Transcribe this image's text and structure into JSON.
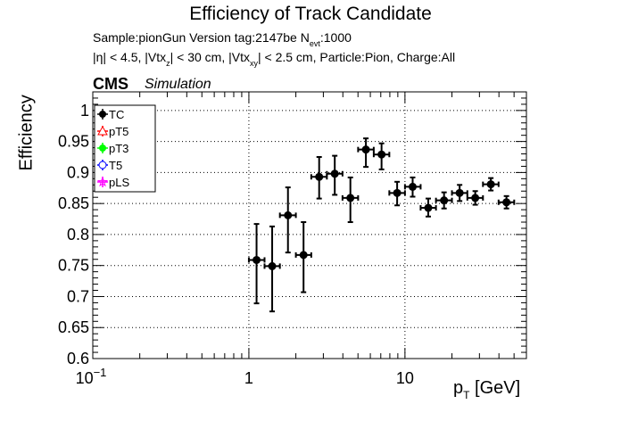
{
  "header": {
    "title": "Efficiency of Track Candidate",
    "subtitle_1_a": "Sample:pionGun   Version tag:2147be  N",
    "subtitle_1_sub": "evt",
    "subtitle_1_b": ":1000",
    "subtitle_2_a": "|η| < 4.5, |Vtx",
    "subtitle_2_sub1": "z",
    "subtitle_2_b": "| < 30 cm, |Vtx",
    "subtitle_2_sub2": "xy",
    "subtitle_2_c": "| < 2.5 cm, Particle:Pion, Charge:All",
    "cms_label": "CMS",
    "simulation_label": "Simulation"
  },
  "chart_data": {
    "type": "scatter",
    "title": "Efficiency of Track Candidate",
    "ylabel": "Efficiency",
    "xlabel_main": "p",
    "xlabel_sub": "T",
    "xlabel_unit": " [GeV]",
    "xscale": "log",
    "xlim": [
      0.1,
      60
    ],
    "ylim": [
      0.6,
      1.03
    ],
    "grid": true,
    "legend_position": "top-left",
    "x_tick_labels": [
      {
        "value": 0.1,
        "label": "10",
        "sup": "−1"
      },
      {
        "value": 1,
        "label": "1",
        "sup": ""
      },
      {
        "value": 10,
        "label": "10",
        "sup": ""
      }
    ],
    "y_ticks": [
      0.6,
      0.65,
      0.7,
      0.75,
      0.8,
      0.85,
      0.9,
      0.95,
      1
    ],
    "y_tick_labels": [
      "0.6",
      "0.65",
      "0.7",
      "0.75",
      "0.8",
      "0.85",
      "0.9",
      "0.95",
      "1"
    ],
    "legend": [
      {
        "name": "TC",
        "color": "#000000",
        "marker": "filled-circle"
      },
      {
        "name": "pT5",
        "color": "#ff0000",
        "marker": "open-triangle"
      },
      {
        "name": "pT3",
        "color": "#00ff00",
        "marker": "filled-circle"
      },
      {
        "name": "T5",
        "color": "#0000ff",
        "marker": "open-circle"
      },
      {
        "name": "pLS",
        "color": "#ff00ff",
        "marker": "star"
      }
    ],
    "series": [
      {
        "name": "TC",
        "color": "#000000",
        "points": [
          {
            "x": 1.12,
            "xlo": 1.0,
            "xhi": 1.26,
            "y": 0.759,
            "ylo": 0.689,
            "yhi": 0.817
          },
          {
            "x": 1.41,
            "xlo": 1.26,
            "xhi": 1.58,
            "y": 0.749,
            "ylo": 0.676,
            "yhi": 0.813
          },
          {
            "x": 1.78,
            "xlo": 1.58,
            "xhi": 2.0,
            "y": 0.831,
            "ylo": 0.771,
            "yhi": 0.876
          },
          {
            "x": 2.24,
            "xlo": 2.0,
            "xhi": 2.51,
            "y": 0.767,
            "ylo": 0.707,
            "yhi": 0.82
          },
          {
            "x": 2.82,
            "xlo": 2.51,
            "xhi": 3.16,
            "y": 0.893,
            "ylo": 0.858,
            "yhi": 0.925
          },
          {
            "x": 3.55,
            "xlo": 3.16,
            "xhi": 3.98,
            "y": 0.898,
            "ylo": 0.864,
            "yhi": 0.927
          },
          {
            "x": 4.47,
            "xlo": 3.98,
            "xhi": 5.01,
            "y": 0.859,
            "ylo": 0.82,
            "yhi": 0.892
          },
          {
            "x": 5.62,
            "xlo": 5.01,
            "xhi": 6.31,
            "y": 0.937,
            "ylo": 0.909,
            "yhi": 0.955
          },
          {
            "x": 7.08,
            "xlo": 6.31,
            "xhi": 7.94,
            "y": 0.929,
            "ylo": 0.905,
            "yhi": 0.947
          },
          {
            "x": 8.91,
            "xlo": 7.94,
            "xhi": 10.0,
            "y": 0.867,
            "ylo": 0.847,
            "yhi": 0.885
          },
          {
            "x": 11.2,
            "xlo": 10.0,
            "xhi": 12.6,
            "y": 0.877,
            "ylo": 0.861,
            "yhi": 0.892
          },
          {
            "x": 14.1,
            "xlo": 12.6,
            "xhi": 15.8,
            "y": 0.843,
            "ylo": 0.829,
            "yhi": 0.858
          },
          {
            "x": 17.8,
            "xlo": 15.8,
            "xhi": 20.0,
            "y": 0.855,
            "ylo": 0.842,
            "yhi": 0.868
          },
          {
            "x": 22.4,
            "xlo": 20.0,
            "xhi": 25.1,
            "y": 0.867,
            "ylo": 0.854,
            "yhi": 0.88
          },
          {
            "x": 28.2,
            "xlo": 25.1,
            "xhi": 31.6,
            "y": 0.859,
            "ylo": 0.848,
            "yhi": 0.87
          },
          {
            "x": 35.5,
            "xlo": 31.6,
            "xhi": 39.8,
            "y": 0.881,
            "ylo": 0.871,
            "yhi": 0.891
          },
          {
            "x": 44.7,
            "xlo": 39.8,
            "xhi": 50.1,
            "y": 0.852,
            "ylo": 0.842,
            "yhi": 0.862
          }
        ]
      }
    ]
  }
}
